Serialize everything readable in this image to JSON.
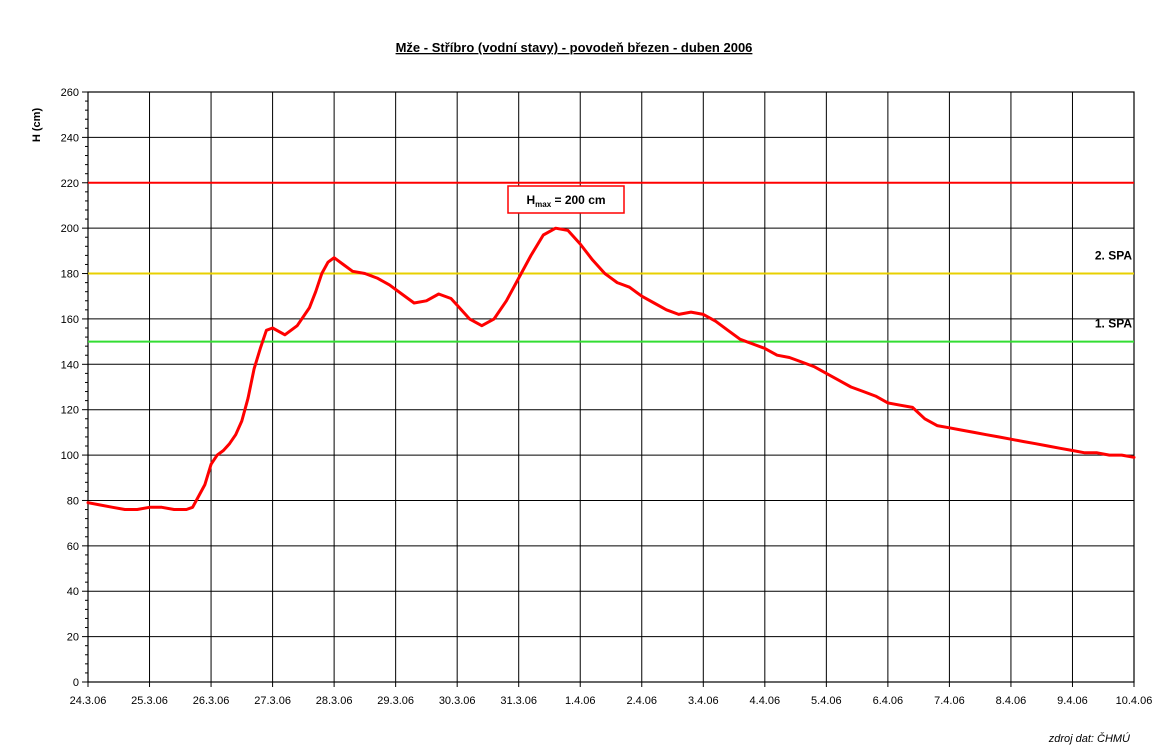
{
  "chart_data": {
    "type": "line",
    "title": "Mže - Stříbro (vodní stavy) - povodeň březen - duben 2006",
    "ylabel": "H (cm)",
    "xlabel": "",
    "ylim": [
      0,
      260
    ],
    "yticks": [
      0,
      20,
      40,
      60,
      80,
      100,
      120,
      140,
      160,
      180,
      200,
      220,
      240,
      260
    ],
    "xlim": [
      "24.3.06",
      "10.4.06"
    ],
    "xticks": [
      "24.3.06",
      "25.3.06",
      "26.3.06",
      "27.3.06",
      "28.3.06",
      "29.3.06",
      "30.3.06",
      "31.3.06",
      "1.4.06",
      "2.4.06",
      "3.4.06",
      "4.4.06",
      "5.4.06",
      "6.4.06",
      "7.4.06",
      "8.4.06",
      "9.4.06",
      "10.4.06"
    ],
    "grid": true,
    "series": [
      {
        "color": "#ff0000",
        "x": [
          0,
          0.2,
          0.4,
          0.6,
          0.8,
          1.0,
          1.2,
          1.4,
          1.6,
          1.7,
          1.8,
          1.9,
          2.0,
          2.1,
          2.2,
          2.3,
          2.4,
          2.5,
          2.6,
          2.7,
          2.8,
          2.9,
          3.0,
          3.2,
          3.4,
          3.6,
          3.7,
          3.8,
          3.9,
          4.0,
          4.15,
          4.3,
          4.5,
          4.7,
          4.9,
          5.1,
          5.3,
          5.5,
          5.7,
          5.9,
          6.0,
          6.2,
          6.4,
          6.6,
          6.8,
          7.0,
          7.2,
          7.4,
          7.6,
          7.8,
          8.0,
          8.2,
          8.4,
          8.5,
          8.6,
          8.7,
          8.8,
          8.9,
          9.0,
          9.2,
          9.4,
          9.6,
          9.8,
          10.0,
          10.2,
          10.4,
          10.6,
          10.8,
          11.0,
          11.2,
          11.4,
          11.6,
          11.8,
          12.0,
          12.2,
          12.4,
          12.6,
          12.8,
          13.0,
          13.2,
          13.4,
          13.6,
          13.8,
          14.0,
          14.2,
          14.4,
          14.6,
          14.8,
          15.0,
          15.2,
          15.4,
          15.6,
          15.8,
          16.0,
          16.2,
          16.4,
          16.6,
          16.8,
          17.0
        ],
        "y": [
          79,
          78,
          77,
          76,
          76,
          77,
          77,
          76,
          76,
          77,
          82,
          87,
          96,
          100,
          102,
          105,
          109,
          115,
          125,
          138,
          147,
          155,
          156,
          153,
          157,
          165,
          172,
          180,
          185,
          187,
          184,
          181,
          180,
          178,
          175,
          171,
          167,
          168,
          171,
          169,
          166,
          160,
          157,
          160,
          168,
          178,
          188,
          197,
          200,
          199,
          193,
          186,
          180,
          178,
          176,
          175,
          174,
          172,
          170,
          167,
          164,
          162,
          163,
          162,
          159,
          155,
          151,
          149,
          147,
          144,
          143,
          141,
          139,
          136,
          133,
          130,
          128,
          126,
          123,
          122,
          121,
          116,
          113,
          112,
          111,
          110,
          109,
          108,
          107,
          106,
          105,
          104,
          103,
          102,
          101,
          101,
          100,
          100,
          99
        ]
      }
    ],
    "reference_lines": [
      {
        "y": 220,
        "color": "#ff0000",
        "label": ""
      },
      {
        "y": 180,
        "color": "#e8d000",
        "label": "2. SPA"
      },
      {
        "y": 150,
        "color": "#33dd33",
        "label": "1. SPA"
      }
    ],
    "annotation": {
      "main": "H",
      "sub": "max",
      "rest": " = 200 cm"
    },
    "source_note": "zdroj dat: ČHMÚ"
  }
}
